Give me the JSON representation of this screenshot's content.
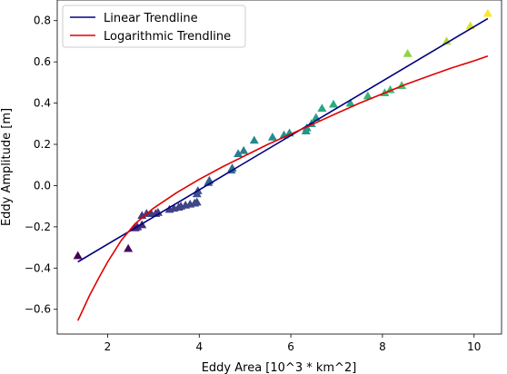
{
  "chart_data": {
    "type": "scatter",
    "title": "",
    "xlabel": "Eddy Area [10^3 * km^2]",
    "ylabel": "Eddy Amplitude [m]",
    "xlim": [
      0.9,
      10.6
    ],
    "ylim": [
      -0.72,
      0.9
    ],
    "xticks": [
      2,
      4,
      6,
      8,
      10
    ],
    "yticks": [
      -0.6,
      -0.4,
      -0.2,
      0.0,
      0.2,
      0.4,
      0.6,
      0.8
    ],
    "xtick_labels": [
      "2",
      "4",
      "6",
      "8",
      "10"
    ],
    "ytick_labels": [
      "−0.6",
      "−0.4",
      "−0.2",
      "0.0",
      "0.2",
      "0.4",
      "0.6",
      "0.8"
    ],
    "grid": false,
    "legend_position": "upper-left",
    "colormap": "viridis",
    "marker": "triangle",
    "points": [
      {
        "x": 1.35,
        "y": -0.34
      },
      {
        "x": 2.45,
        "y": -0.305
      },
      {
        "x": 2.6,
        "y": -0.205
      },
      {
        "x": 2.65,
        "y": -0.2
      },
      {
        "x": 2.75,
        "y": -0.19
      },
      {
        "x": 2.75,
        "y": -0.145
      },
      {
        "x": 2.85,
        "y": -0.135
      },
      {
        "x": 2.95,
        "y": -0.135
      },
      {
        "x": 3.05,
        "y": -0.135
      },
      {
        "x": 3.1,
        "y": -0.13
      },
      {
        "x": 3.35,
        "y": -0.115
      },
      {
        "x": 3.45,
        "y": -0.11
      },
      {
        "x": 3.55,
        "y": -0.105
      },
      {
        "x": 3.6,
        "y": -0.1
      },
      {
        "x": 3.7,
        "y": -0.095
      },
      {
        "x": 3.8,
        "y": -0.09
      },
      {
        "x": 3.9,
        "y": -0.085
      },
      {
        "x": 3.95,
        "y": -0.08
      },
      {
        "x": 3.95,
        "y": -0.04
      },
      {
        "x": 3.97,
        "y": -0.025
      },
      {
        "x": 4.2,
        "y": 0.015
      },
      {
        "x": 4.22,
        "y": 0.025
      },
      {
        "x": 4.7,
        "y": 0.075
      },
      {
        "x": 4.72,
        "y": 0.085
      },
      {
        "x": 4.85,
        "y": 0.155
      },
      {
        "x": 4.97,
        "y": 0.17
      },
      {
        "x": 5.2,
        "y": 0.22
      },
      {
        "x": 5.6,
        "y": 0.235
      },
      {
        "x": 5.85,
        "y": 0.245
      },
      {
        "x": 5.97,
        "y": 0.255
      },
      {
        "x": 6.33,
        "y": 0.265
      },
      {
        "x": 6.35,
        "y": 0.28
      },
      {
        "x": 6.45,
        "y": 0.3
      },
      {
        "x": 6.55,
        "y": 0.33
      },
      {
        "x": 6.68,
        "y": 0.375
      },
      {
        "x": 6.93,
        "y": 0.395
      },
      {
        "x": 7.3,
        "y": 0.4
      },
      {
        "x": 7.68,
        "y": 0.435
      },
      {
        "x": 8.05,
        "y": 0.45
      },
      {
        "x": 8.17,
        "y": 0.465
      },
      {
        "x": 8.42,
        "y": 0.485
      },
      {
        "x": 8.55,
        "y": 0.64
      },
      {
        "x": 9.4,
        "y": 0.7
      },
      {
        "x": 9.92,
        "y": 0.775
      },
      {
        "x": 10.3,
        "y": 0.835
      }
    ],
    "series": [
      {
        "name": "Linear Trendline",
        "color": "#000080",
        "x": [
          1.35,
          10.3
        ],
        "y": [
          -0.37,
          0.81
        ]
      },
      {
        "name": "Logarithmic Trendline",
        "color": "#e00000",
        "x": [
          1.35,
          1.6,
          1.8,
          2.0,
          2.3,
          2.6,
          3.0,
          3.5,
          4.0,
          4.5,
          5.0,
          5.5,
          6.0,
          6.5,
          7.0,
          7.5,
          8.0,
          8.5,
          9.0,
          9.5,
          10.0,
          10.3
        ],
        "y": [
          -0.655,
          -0.535,
          -0.45,
          -0.37,
          -0.265,
          -0.185,
          -0.11,
          -0.035,
          0.03,
          0.09,
          0.145,
          0.2,
          0.25,
          0.3,
          0.35,
          0.4,
          0.445,
          0.49,
          0.53,
          0.57,
          0.605,
          0.628
        ]
      }
    ]
  }
}
